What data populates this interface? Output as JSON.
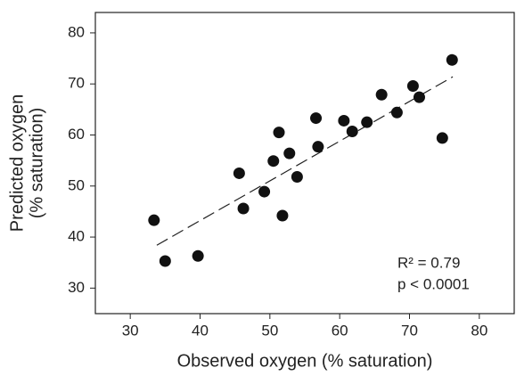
{
  "chart_data": {
    "type": "scatter",
    "x_label": "Observed oxygen (% saturation)",
    "y_label": [
      "Predicted oxygen",
      "(% saturation)"
    ],
    "annotations": [
      "R² = 0.79",
      "p < 0.0001"
    ],
    "color": "#111111",
    "x": [
      33.4,
      35.0,
      39.7,
      45.6,
      46.2,
      49.2,
      50.5,
      51.3,
      51.8,
      52.8,
      53.9,
      56.6,
      56.9,
      60.6,
      61.8,
      63.9,
      66.0,
      68.2,
      70.5,
      71.4,
      74.7,
      76.1
    ],
    "values": [
      43.3,
      35.3,
      36.3,
      52.5,
      45.6,
      48.9,
      54.9,
      60.5,
      44.2,
      56.4,
      51.8,
      63.3,
      57.7,
      62.8,
      60.7,
      62.5,
      67.9,
      64.4,
      69.6,
      67.4,
      59.4,
      74.7
    ],
    "trendline": {
      "x": [
        33.8,
        76.2
      ],
      "values": [
        38.4,
        71.4
      ]
    },
    "xlim": [
      25,
      85
    ],
    "ylim": [
      25,
      84
    ],
    "xticks": [
      30,
      40,
      50,
      60,
      70,
      80
    ],
    "yticks": [
      30,
      40,
      50,
      60,
      70,
      80
    ]
  }
}
